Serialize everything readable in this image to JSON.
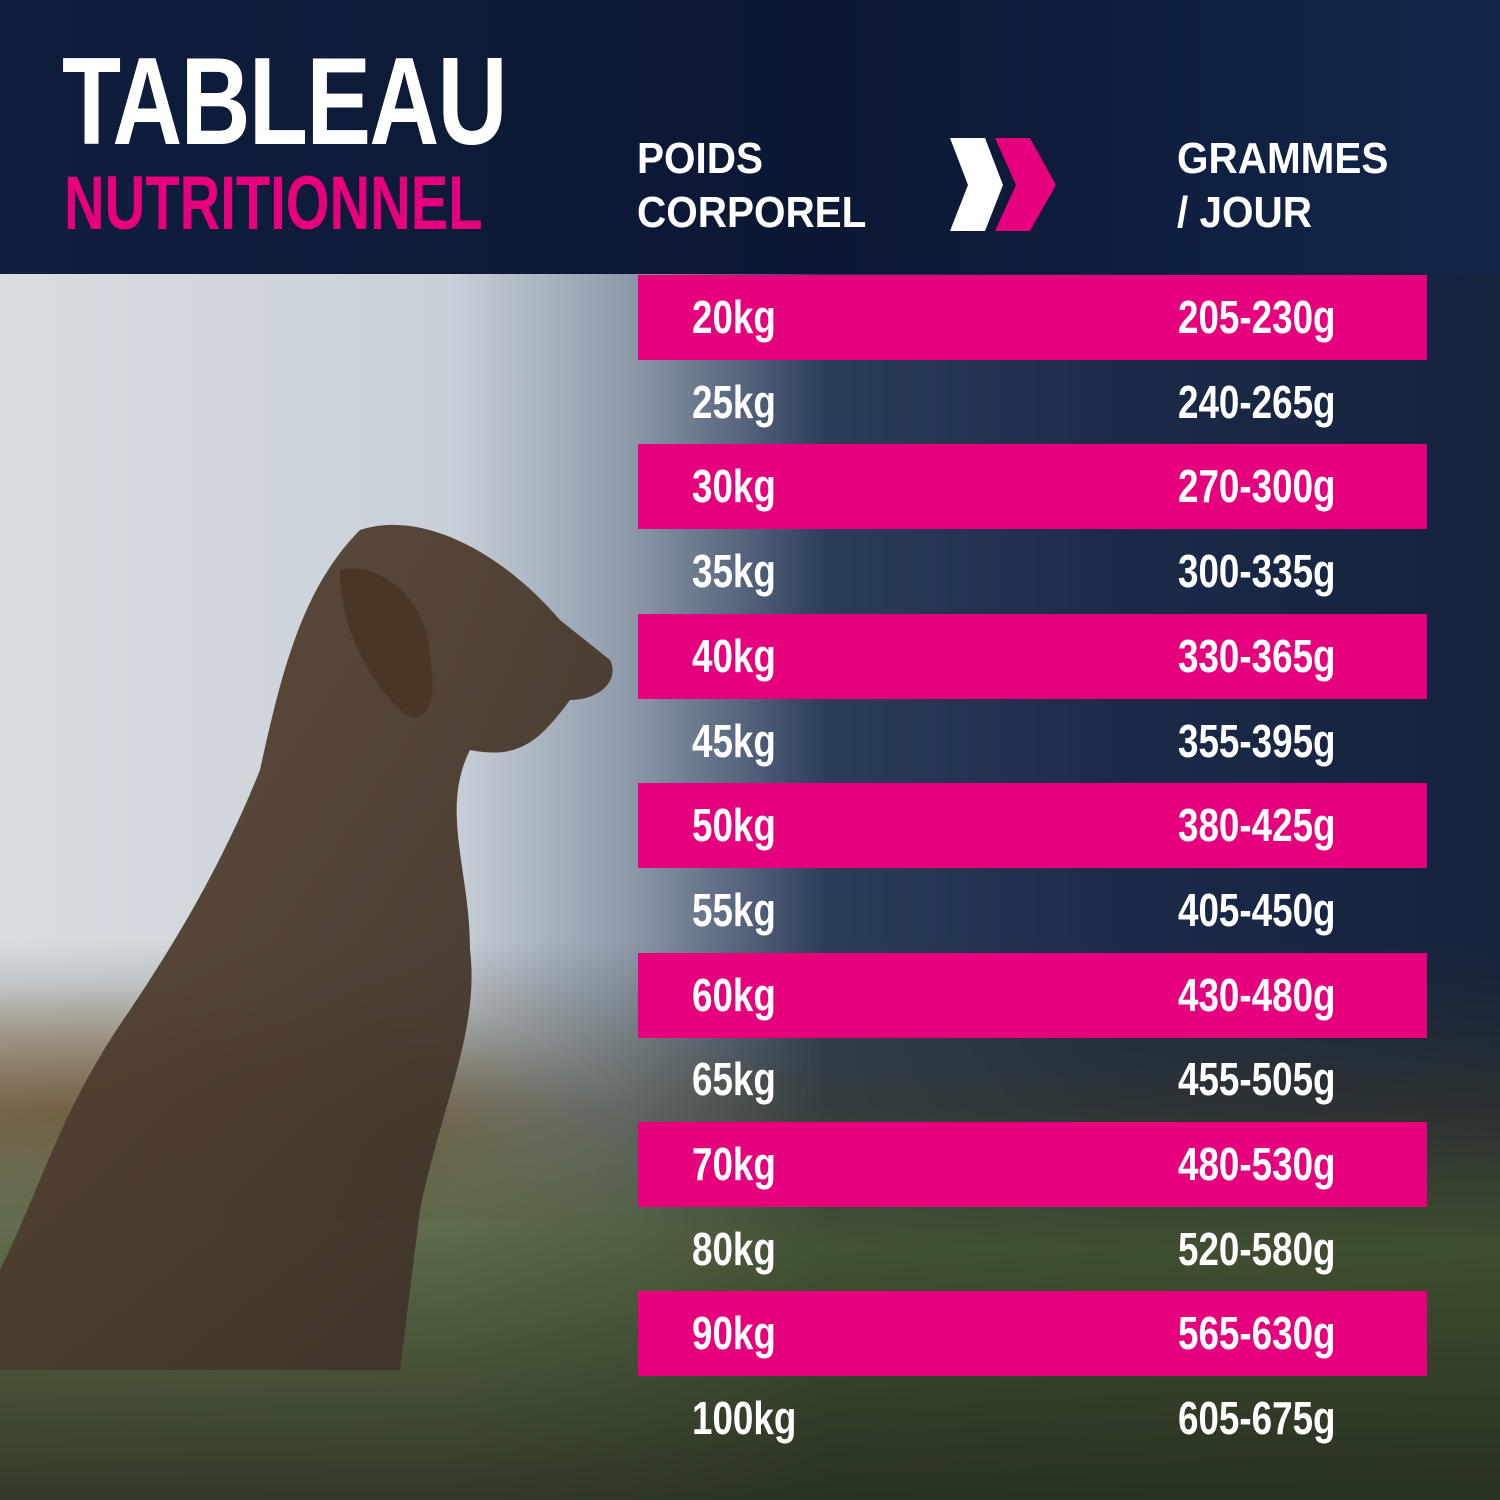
{
  "title": {
    "line1": "TABLEAU",
    "line2": "NUTRITIONNEL"
  },
  "headers": {
    "weight_line1": "POIDS",
    "weight_line2": "CORPOREL",
    "grams_line1": "GRAMMES",
    "grams_line2": "/ JOUR"
  },
  "icons": {
    "arrow": "double-chevron-right-icon"
  },
  "colors": {
    "accent": "#e6007e",
    "header_bg": "#0f1e3e"
  },
  "rows": [
    {
      "weight": "20kg",
      "grams": "205-230g"
    },
    {
      "weight": "25kg",
      "grams": "240-265g"
    },
    {
      "weight": "30kg",
      "grams": "270-300g"
    },
    {
      "weight": "35kg",
      "grams": "300-335g"
    },
    {
      "weight": "40kg",
      "grams": "330-365g"
    },
    {
      "weight": "45kg",
      "grams": "355-395g"
    },
    {
      "weight": "50kg",
      "grams": "380-425g"
    },
    {
      "weight": "55kg",
      "grams": "405-450g"
    },
    {
      "weight": "60kg",
      "grams": "430-480g"
    },
    {
      "weight": "65kg",
      "grams": "455-505g"
    },
    {
      "weight": "70kg",
      "grams": "480-530g"
    },
    {
      "weight": "80kg",
      "grams": "520-580g"
    },
    {
      "weight": "90kg",
      "grams": "565-630g"
    },
    {
      "weight": "100kg",
      "grams": "605-675g"
    }
  ]
}
